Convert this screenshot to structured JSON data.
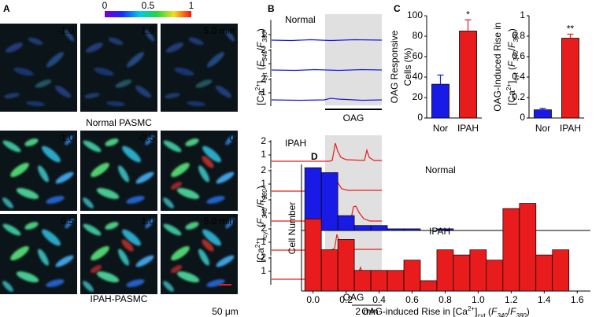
{
  "figure": {
    "panel_labels": [
      "A",
      "B",
      "C",
      "D"
    ],
    "panel_a": {
      "colorbar_ticks": [
        0,
        0.5,
        1
      ],
      "normal_times": [
        "-1.0",
        "1.0",
        "5.0 min"
      ],
      "normal_caption": "Normal PASMC",
      "ipah_times": [
        "-1.0",
        "-0.5",
        "0",
        "0.5",
        "1.0",
        "5.0 min"
      ],
      "ipah_caption": "IPAH-PASMC",
      "scale_bar": "50 μm"
    },
    "panel_b": {
      "normal_title": "Normal",
      "ipah_title": "IPAH",
      "normal_tick_labels": [
        [
          1
        ],
        [
          2,
          1
        ],
        [
          2,
          1
        ]
      ],
      "ipah_tick_labels": [
        [
          2,
          1
        ],
        [
          2,
          1
        ],
        [
          2,
          1
        ],
        [
          2,
          1
        ],
        [
          2,
          1
        ]
      ],
      "normal_ylabel": [
        "[Ca",
        "2+",
        "]",
        "cyt",
        " (",
        "F",
        "340",
        "/",
        "F",
        "380",
        ")"
      ],
      "ipah_ylabel": [
        "[Ca",
        "2+",
        "]",
        "cyt",
        " (",
        "F",
        "340",
        "/",
        "F",
        "380",
        ")"
      ],
      "normal_drug": "OAG",
      "ipah_drug": "OAG",
      "time_scale": "2 min"
    }
  },
  "chart_data": [
    {
      "type": "bar",
      "categories": [
        "Nor",
        "IPAH"
      ],
      "values": [
        33,
        85
      ],
      "errors": [
        9,
        11
      ],
      "colors": [
        "#1a1ae6",
        "#e81c1c"
      ],
      "ylim": [
        0,
        100
      ],
      "yticks": [
        0,
        20,
        40,
        60,
        80,
        100
      ],
      "ylabel": [
        "OAG Responsive",
        "Cells (%)"
      ],
      "annotation": "*"
    },
    {
      "type": "bar",
      "categories": [
        "Nor",
        "IPAH"
      ],
      "values": [
        0.08,
        0.78
      ],
      "errors": [
        0.015,
        0.04
      ],
      "colors": [
        "#1a1ae6",
        "#e81c1c"
      ],
      "ylim": [
        0,
        1
      ],
      "yticks": [
        0,
        0.2,
        0.4,
        0.6,
        0.8,
        1
      ],
      "ylabel": [
        "OAG-Induced Rise in",
        [
          "[Ca",
          "2+",
          "]",
          "cyt",
          " (",
          "F",
          "340",
          "/",
          "F",
          "380",
          ")"
        ]
      ],
      "annotation": "**"
    },
    {
      "type": "histogram",
      "label": "Normal",
      "color": "#1a1ae6",
      "bins": [
        -0.05,
        0.05,
        0.15,
        0.25,
        0.35,
        0.45,
        0.55,
        0.65,
        0.75,
        0.85,
        0.95,
        1.05,
        1.15,
        1.25,
        1.35,
        1.45,
        1.55
      ],
      "values": [
        38,
        35,
        9,
        3,
        3,
        1,
        1,
        0,
        1,
        0,
        0,
        0,
        1,
        0,
        0,
        0
      ],
      "xlim": [
        -0.07,
        1.68
      ],
      "ylim": [
        0,
        40
      ],
      "ylabel": "Cell Number"
    },
    {
      "type": "histogram",
      "label": "IPAH",
      "color": "#e81c1c",
      "bins": [
        -0.05,
        0.05,
        0.15,
        0.25,
        0.35,
        0.45,
        0.55,
        0.65,
        0.75,
        0.85,
        0.95,
        1.05,
        1.15,
        1.25,
        1.35,
        1.45,
        1.55
      ],
      "values": [
        14,
        8,
        10,
        4,
        4,
        4,
        6,
        2,
        8,
        7,
        8,
        6,
        16,
        17,
        7,
        8
      ],
      "xlim": [
        -0.07,
        1.68
      ],
      "ylim": [
        0,
        18
      ],
      "xticks": [
        {
          "value": 0,
          "label": "0.0"
        },
        0.2,
        0.4,
        0.6,
        0.8,
        {
          "value": 1,
          "label": "1.0"
        },
        1.2,
        1.4,
        1.6
      ],
      "xlabel": [
        "OAG-induced Rise in [Ca",
        "2+",
        "]",
        "cyt",
        " (",
        "F",
        "340",
        "/",
        "F",
        "380",
        ")"
      ]
    }
  ]
}
